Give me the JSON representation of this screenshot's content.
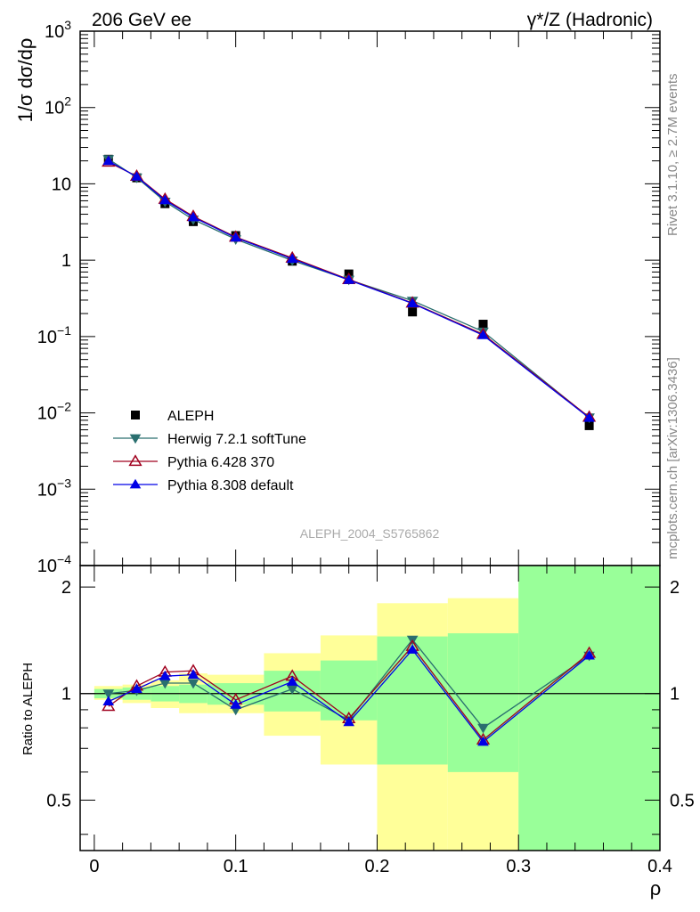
{
  "header": {
    "left_label": "206 GeV ee",
    "right_label": "γ*/Z (Hadronic)"
  },
  "side_labels": {
    "rivet": "Rivet 3.1.10, ≥ 2.7M events",
    "mcplots": "mcplots.cern.ch [arXiv:1306.3436]"
  },
  "analysis_id": "ALEPH_2004_S5765862",
  "colors": {
    "data": "#000000",
    "herwig": "#2a6f6f",
    "pythia6": "#a0001e",
    "pythia8": "#0000e6",
    "band_inner": "#99ff99",
    "band_outer": "#ffff99"
  },
  "chart_data": [
    {
      "type": "scatter",
      "panel": "main",
      "ylabel": "1/σ  dσ/dρ",
      "yscale": "log",
      "ylim": [
        0.0001,
        1000
      ],
      "xlim": [
        -0.01,
        0.4
      ],
      "y_tick_labels": [
        "10^-4",
        "10^-3",
        "10^-2",
        "10^-1",
        "1",
        "10",
        "10^2",
        "10^3"
      ],
      "legend_placement": "bottom-left",
      "series": [
        {
          "name": "ALEPH",
          "marker": "square",
          "x": [
            0.01,
            0.03,
            0.05,
            0.07,
            0.1,
            0.14,
            0.18,
            0.225,
            0.275,
            0.35
          ],
          "y": [
            21,
            12,
            5.5,
            3.2,
            2.1,
            0.97,
            0.66,
            0.21,
            0.145,
            0.0068
          ]
        },
        {
          "name": "Herwig 7.2.1 softTune",
          "marker": "triangle-down",
          "x": [
            0.01,
            0.03,
            0.05,
            0.07,
            0.1,
            0.14,
            0.18,
            0.225,
            0.275,
            0.35
          ],
          "y": [
            21.1,
            12.1,
            5.85,
            3.41,
            1.88,
            0.99,
            0.555,
            0.295,
            0.116,
            0.0087
          ]
        },
        {
          "name": "Pythia 6.428 370",
          "marker": "triangle-up-open",
          "x": [
            0.01,
            0.03,
            0.05,
            0.07,
            0.1,
            0.14,
            0.18,
            0.225,
            0.275,
            0.35
          ],
          "y": [
            19.3,
            12.6,
            6.3,
            3.75,
            2.01,
            1.07,
            0.56,
            0.275,
            0.107,
            0.0088
          ]
        },
        {
          "name": "Pythia 8.308 default",
          "marker": "triangle-up",
          "x": [
            0.01,
            0.03,
            0.05,
            0.07,
            0.1,
            0.14,
            0.18,
            0.225,
            0.275,
            0.35
          ],
          "y": [
            19.9,
            12.4,
            6.1,
            3.65,
            1.97,
            1.04,
            0.55,
            0.272,
            0.104,
            0.0086
          ]
        }
      ]
    },
    {
      "type": "line",
      "panel": "ratio",
      "xlabel": "ρ",
      "ylabel": "Ratio to ALEPH",
      "ylim": [
        0.36,
        2.3
      ],
      "xlim": [
        -0.01,
        0.4
      ],
      "x_tick_labels": [
        "0",
        "0.1",
        "0.2",
        "0.3",
        "0.4"
      ],
      "y_tick_labels": [
        "0.5",
        "1",
        "2"
      ],
      "reference_line": 1,
      "error_bands": [
        {
          "x0": 0.0,
          "x1": 0.02,
          "inner": [
            0.97,
            1.03
          ],
          "outer": [
            0.96,
            1.05
          ]
        },
        {
          "x0": 0.02,
          "x1": 0.04,
          "inner": [
            0.96,
            1.04
          ],
          "outer": [
            0.94,
            1.06
          ]
        },
        {
          "x0": 0.04,
          "x1": 0.06,
          "inner": [
            0.95,
            1.05
          ],
          "outer": [
            0.91,
            1.09
          ]
        },
        {
          "x0": 0.06,
          "x1": 0.08,
          "inner": [
            0.94,
            1.06
          ],
          "outer": [
            0.88,
            1.14
          ]
        },
        {
          "x0": 0.08,
          "x1": 0.12,
          "inner": [
            0.93,
            1.07
          ],
          "outer": [
            0.88,
            1.13
          ]
        },
        {
          "x0": 0.12,
          "x1": 0.16,
          "inner": [
            0.89,
            1.16
          ],
          "outer": [
            0.76,
            1.3
          ]
        },
        {
          "x0": 0.16,
          "x1": 0.2,
          "inner": [
            0.84,
            1.24
          ],
          "outer": [
            0.63,
            1.46
          ]
        },
        {
          "x0": 0.2,
          "x1": 0.25,
          "inner": [
            0.63,
            1.45
          ],
          "outer": [
            0.36,
            1.8
          ]
        },
        {
          "x0": 0.25,
          "x1": 0.3,
          "inner": [
            0.6,
            1.48
          ],
          "outer": [
            0.36,
            1.86
          ]
        },
        {
          "x0": 0.3,
          "x1": 0.4,
          "inner": [
            0.36,
            2.3
          ],
          "outer": [
            0.36,
            2.3
          ]
        }
      ],
      "series": [
        {
          "name": "Herwig 7.2.1 softTune",
          "marker": "triangle-down",
          "x": [
            0.01,
            0.03,
            0.05,
            0.07,
            0.1,
            0.14,
            0.18,
            0.225,
            0.275,
            0.35
          ],
          "y": [
            1.0,
            1.02,
            1.07,
            1.07,
            0.9,
            1.03,
            0.84,
            1.42,
            0.8,
            1.28
          ]
        },
        {
          "name": "Pythia 6.428 370",
          "marker": "triangle-up-open",
          "x": [
            0.01,
            0.03,
            0.05,
            0.07,
            0.1,
            0.14,
            0.18,
            0.225,
            0.275,
            0.35
          ],
          "y": [
            0.92,
            1.05,
            1.15,
            1.16,
            0.96,
            1.12,
            0.85,
            1.36,
            0.74,
            1.3
          ]
        },
        {
          "name": "Pythia 8.308 default",
          "marker": "triangle-up",
          "x": [
            0.01,
            0.03,
            0.05,
            0.07,
            0.1,
            0.14,
            0.18,
            0.225,
            0.275,
            0.35
          ],
          "y": [
            0.95,
            1.03,
            1.12,
            1.13,
            0.93,
            1.08,
            0.83,
            1.33,
            0.73,
            1.28
          ]
        }
      ]
    }
  ]
}
